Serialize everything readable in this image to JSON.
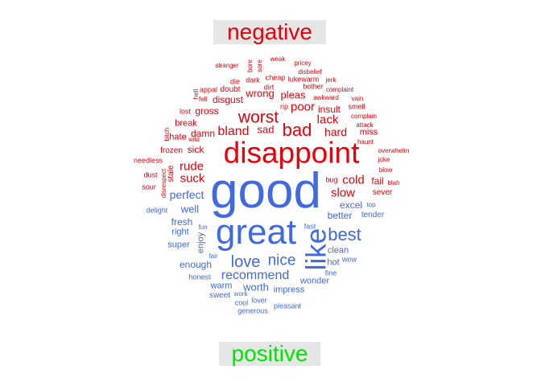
{
  "labels": {
    "negative": "negative",
    "positive": "positive"
  },
  "colors": {
    "negative": "#e8000b",
    "positive": "#4169e1",
    "negative_label": "#e8000b",
    "positive_label": "#00e600"
  },
  "words": [
    {
      "t": "weak",
      "g": "n"
    },
    {
      "t": "pricey",
      "g": "n"
    },
    {
      "t": "stranger",
      "g": "n"
    },
    {
      "t": "bore",
      "g": "n"
    },
    {
      "t": "sore",
      "g": "n"
    },
    {
      "t": "disbelief",
      "g": "n"
    },
    {
      "t": "cheap",
      "g": "n"
    },
    {
      "t": "lukewarm",
      "g": "n"
    },
    {
      "t": "die",
      "g": "n"
    },
    {
      "t": "dark",
      "g": "n"
    },
    {
      "t": "jerk",
      "g": "n"
    },
    {
      "t": "appal",
      "g": "n"
    },
    {
      "t": "doubt",
      "g": "n"
    },
    {
      "t": "dirt",
      "g": "n"
    },
    {
      "t": "bother",
      "g": "n"
    },
    {
      "t": "hell",
      "g": "n"
    },
    {
      "t": "complaint",
      "g": "n"
    },
    {
      "t": "wrong",
      "g": "n"
    },
    {
      "t": "pleas",
      "g": "n"
    },
    {
      "t": "fell",
      "g": "n"
    },
    {
      "t": "disgust",
      "g": "n"
    },
    {
      "t": "awkward",
      "g": "n"
    },
    {
      "t": "vain",
      "g": "n"
    },
    {
      "t": "rip",
      "g": "n"
    },
    {
      "t": "poor",
      "g": "n"
    },
    {
      "t": "insult",
      "g": "n"
    },
    {
      "t": "smell",
      "g": "n"
    },
    {
      "t": "lost",
      "g": "n"
    },
    {
      "t": "gross",
      "g": "n"
    },
    {
      "t": "worst",
      "g": "n"
    },
    {
      "t": "lack",
      "g": "n"
    },
    {
      "t": "complain",
      "g": "n"
    },
    {
      "t": "break",
      "g": "n"
    },
    {
      "t": "bland",
      "g": "n"
    },
    {
      "t": "bad",
      "g": "n"
    },
    {
      "t": "attack",
      "g": "n"
    },
    {
      "t": "miss",
      "g": "n"
    },
    {
      "t": "bitch",
      "g": "n"
    },
    {
      "t": "damn",
      "g": "n"
    },
    {
      "t": "sad",
      "g": "n"
    },
    {
      "t": "hard",
      "g": "n"
    },
    {
      "t": "hate",
      "g": "n"
    },
    {
      "t": "wild",
      "g": "n"
    },
    {
      "t": "haunt",
      "g": "n"
    },
    {
      "t": "sick",
      "g": "n"
    },
    {
      "t": "disappoint",
      "g": "n"
    },
    {
      "t": "frozen",
      "g": "n"
    },
    {
      "t": "overwhelm",
      "g": "n"
    },
    {
      "t": "needless",
      "g": "n"
    },
    {
      "t": "joke",
      "g": "n"
    },
    {
      "t": "rude",
      "g": "n"
    },
    {
      "t": "stale",
      "g": "n"
    },
    {
      "t": "bug",
      "g": "n"
    },
    {
      "t": "blow",
      "g": "n"
    },
    {
      "t": "disrespect",
      "g": "n"
    },
    {
      "t": "dust",
      "g": "n"
    },
    {
      "t": "suck",
      "g": "n"
    },
    {
      "t": "cold",
      "g": "n"
    },
    {
      "t": "fail",
      "g": "n"
    },
    {
      "t": "blah",
      "g": "n"
    },
    {
      "t": "sour",
      "g": "n"
    },
    {
      "t": "slow",
      "g": "n"
    },
    {
      "t": "sever",
      "g": "n"
    },
    {
      "t": "good",
      "g": "p"
    },
    {
      "t": "perfect",
      "g": "p"
    },
    {
      "t": "excel",
      "g": "p"
    },
    {
      "t": "top",
      "g": "p"
    },
    {
      "t": "delight",
      "g": "p"
    },
    {
      "t": "well",
      "g": "p"
    },
    {
      "t": "better",
      "g": "p"
    },
    {
      "t": "tender",
      "g": "p"
    },
    {
      "t": "fresh",
      "g": "p"
    },
    {
      "t": "great",
      "g": "p"
    },
    {
      "t": "fast",
      "g": "p"
    },
    {
      "t": "right",
      "g": "p"
    },
    {
      "t": "fun",
      "g": "p"
    },
    {
      "t": "best",
      "g": "p"
    },
    {
      "t": "like",
      "g": "p"
    },
    {
      "t": "enjoy",
      "g": "p"
    },
    {
      "t": "super",
      "g": "p"
    },
    {
      "t": "clean",
      "g": "p"
    },
    {
      "t": "fair",
      "g": "p"
    },
    {
      "t": "wow",
      "g": "p"
    },
    {
      "t": "enough",
      "g": "p"
    },
    {
      "t": "love",
      "g": "p"
    },
    {
      "t": "nice",
      "g": "p"
    },
    {
      "t": "hot",
      "g": "p"
    },
    {
      "t": "fine",
      "g": "p"
    },
    {
      "t": "recommend",
      "g": "p"
    },
    {
      "t": "honest",
      "g": "p"
    },
    {
      "t": "wonder",
      "g": "p"
    },
    {
      "t": "warm",
      "g": "p"
    },
    {
      "t": "worth",
      "g": "p"
    },
    {
      "t": "impress",
      "g": "p"
    },
    {
      "t": "sweet",
      "g": "p"
    },
    {
      "t": "work",
      "g": "p"
    },
    {
      "t": "cool",
      "g": "p"
    },
    {
      "t": "lover",
      "g": "p"
    },
    {
      "t": "pleasant",
      "g": "p"
    },
    {
      "t": "generous",
      "g": "p"
    }
  ]
}
